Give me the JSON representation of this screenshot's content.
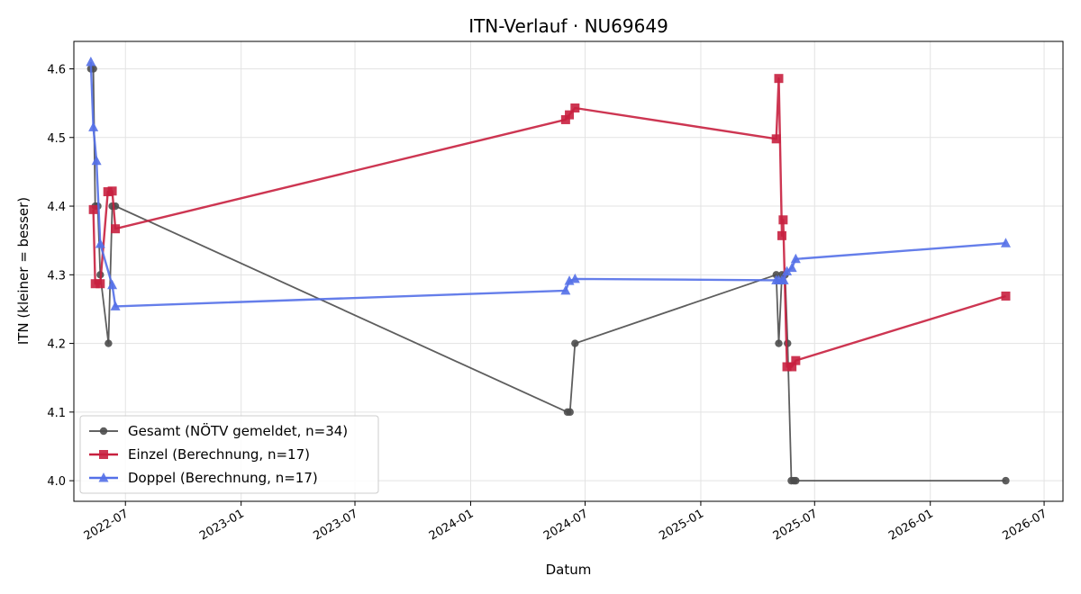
{
  "chart_data": {
    "type": "line",
    "title": "ITN-Verlauf · NU69649",
    "xlabel": "Datum",
    "ylabel": "ITN  (kleiner = besser)",
    "xlim": [
      "2022-04-10",
      "2026-07-31"
    ],
    "ylim": [
      3.97,
      4.64
    ],
    "x_ticks": [
      "2022-07-01",
      "2023-01-01",
      "2023-07-01",
      "2024-01-01",
      "2024-07-01",
      "2025-01-01",
      "2025-07-01",
      "2026-01-01",
      "2026-07-01"
    ],
    "x_tick_labels": [
      "2022-07",
      "2023-01",
      "2023-07",
      "2024-01",
      "2024-07",
      "2025-01",
      "2025-07",
      "2026-01",
      "2026-07"
    ],
    "y_ticks": [
      4.0,
      4.1,
      4.2,
      4.3,
      4.4,
      4.5,
      4.6
    ],
    "y_tick_labels": [
      "4.0",
      "4.1",
      "4.2",
      "4.3",
      "4.4",
      "4.5",
      "4.6"
    ],
    "grid": true,
    "legend_position": "lower-left",
    "series": [
      {
        "name": "Gesamt (NÖTV gemeldet, n=34)",
        "color": "#4d4d4d",
        "marker": "circle",
        "x": [
          "2022-05-07",
          "2022-05-11",
          "2022-05-14",
          "2022-05-18",
          "2022-05-22",
          "2022-06-04",
          "2022-06-10",
          "2022-06-15",
          "2024-06-03",
          "2024-06-07",
          "2024-06-15",
          "2025-05-01",
          "2025-05-05",
          "2025-05-10",
          "2025-05-15",
          "2025-05-19",
          "2025-05-25",
          "2025-05-29",
          "2025-06-01",
          "2026-05-01"
        ],
        "values": [
          4.6,
          4.6,
          4.4,
          4.4,
          4.3,
          4.2,
          4.4,
          4.4,
          4.1,
          4.1,
          4.2,
          4.3,
          4.2,
          4.3,
          4.3,
          4.2,
          4.0,
          4.0,
          4.0,
          4.0
        ]
      },
      {
        "name": "Einzel (Berechnung, n=17)",
        "color": "#c8203f",
        "marker": "square",
        "x": [
          "2022-05-11",
          "2022-05-14",
          "2022-05-22",
          "2022-06-03",
          "2022-06-10",
          "2022-06-15",
          "2024-05-31",
          "2024-06-06",
          "2024-06-15",
          "2025-05-01",
          "2025-05-05",
          "2025-05-10",
          "2025-05-12",
          "2025-05-18",
          "2025-05-26",
          "2025-06-01",
          "2026-05-01"
        ],
        "values": [
          4.395,
          4.287,
          4.287,
          4.421,
          4.422,
          4.367,
          4.526,
          4.533,
          4.543,
          4.498,
          4.586,
          4.357,
          4.38,
          4.166,
          4.166,
          4.175,
          4.269
        ]
      },
      {
        "name": "Doppel (Berechnung, n=17)",
        "color": "#5470e8",
        "marker": "triangle",
        "x": [
          "2022-05-07",
          "2022-05-11",
          "2022-05-16",
          "2022-05-22",
          "2022-06-10",
          "2022-06-15",
          "2024-05-31",
          "2024-06-06",
          "2024-06-15",
          "2025-05-01",
          "2025-05-05",
          "2025-05-10",
          "2025-05-13",
          "2025-05-18",
          "2025-05-26",
          "2025-06-01",
          "2026-05-01"
        ],
        "values": [
          4.61,
          4.515,
          4.466,
          4.345,
          4.285,
          4.254,
          4.277,
          4.291,
          4.294,
          4.292,
          4.292,
          4.292,
          4.292,
          4.305,
          4.31,
          4.323,
          4.346
        ]
      }
    ]
  }
}
